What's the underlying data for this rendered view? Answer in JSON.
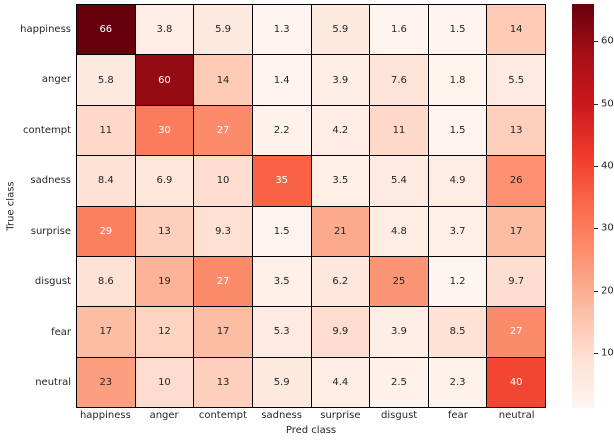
{
  "chart_data": {
    "type": "heatmap",
    "title": "",
    "xlabel": "Pred class",
    "ylabel": "True class",
    "x_categories": [
      "happiness",
      "anger",
      "contempt",
      "sadness",
      "surprise",
      "disgust",
      "fear",
      "neutral"
    ],
    "y_categories": [
      "happiness",
      "anger",
      "contempt",
      "sadness",
      "surprise",
      "disgust",
      "fear",
      "neutral"
    ],
    "values": [
      [
        66,
        3.8,
        5.9,
        1.3,
        5.9,
        1.6,
        1.5,
        14
      ],
      [
        5.8,
        60,
        14,
        1.4,
        3.9,
        7.6,
        1.8,
        5.5
      ],
      [
        11,
        30,
        27,
        2.2,
        4.2,
        11,
        1.5,
        13
      ],
      [
        8.4,
        6.9,
        10,
        35,
        3.5,
        5.4,
        4.9,
        26
      ],
      [
        29,
        13,
        9.3,
        1.5,
        21,
        4.8,
        3.7,
        17
      ],
      [
        8.6,
        19,
        27,
        3.5,
        6.2,
        25,
        1.2,
        9.7
      ],
      [
        17,
        12,
        17,
        5.3,
        9.9,
        3.9,
        8.5,
        27
      ],
      [
        23,
        10,
        13,
        5.9,
        4.4,
        2.5,
        2.3,
        40
      ]
    ],
    "cell_labels": [
      [
        "66",
        "3.8",
        "5.9",
        "1.3",
        "5.9",
        "1.6",
        "1.5",
        "14"
      ],
      [
        "5.8",
        "60",
        "14",
        "1.4",
        "3.9",
        "7.6",
        "1.8",
        "5.5"
      ],
      [
        "11",
        "30",
        "27",
        "2.2",
        "4.2",
        "11",
        "1.5",
        "13"
      ],
      [
        "8.4",
        "6.9",
        "10",
        "35",
        "3.5",
        "5.4",
        "4.9",
        "26"
      ],
      [
        "29",
        "13",
        "9.3",
        "1.5",
        "21",
        "4.8",
        "3.7",
        "17"
      ],
      [
        "8.6",
        "19",
        "27",
        "3.5",
        "6.2",
        "25",
        "1.2",
        "9.7"
      ],
      [
        "17",
        "12",
        "17",
        "5.3",
        "9.9",
        "3.9",
        "8.5",
        "27"
      ],
      [
        "23",
        "10",
        "13",
        "5.9",
        "4.4",
        "2.5",
        "2.3",
        "40"
      ]
    ],
    "vmin": 1.2,
    "vmax": 66,
    "colormap": "Reds",
    "colormap_stops": [
      "#fff5f0",
      "#fee0d2",
      "#fcbba1",
      "#fc9272",
      "#fb6a4a",
      "#ef3b2c",
      "#cb181d",
      "#a50f15",
      "#67000d"
    ],
    "colorbar_ticks": [
      10,
      20,
      30,
      40,
      50,
      60
    ],
    "colorbar_position": "right",
    "grid_color": "#000000",
    "annotation_dark_color": "#262626",
    "annotation_light_color": "#ffffff",
    "legend": "none",
    "grid": "off"
  }
}
